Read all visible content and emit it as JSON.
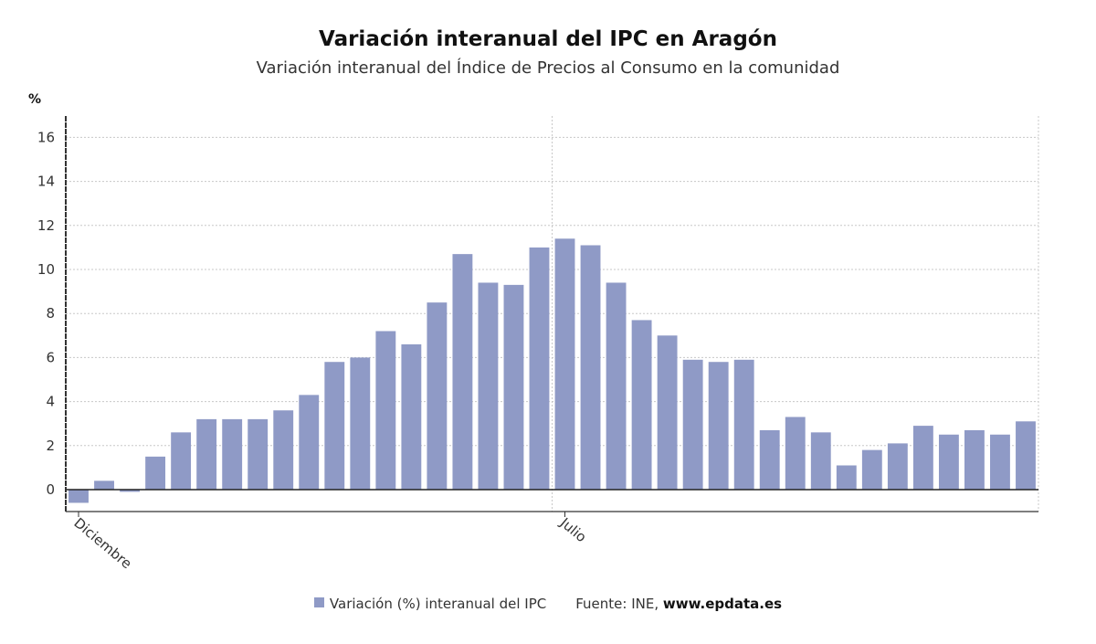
{
  "chart_data": {
    "type": "bar",
    "title": "Variación interanual del IPC en Aragón",
    "subtitle": "Variación interanual del Índice de Precios al Consumo en la comunidad",
    "ylabel": "%",
    "ylim": [
      -1,
      17
    ],
    "yticks": [
      0,
      2,
      4,
      6,
      8,
      10,
      12,
      14,
      16
    ],
    "grid": true,
    "x_tick_labels": [
      {
        "index": 0,
        "label": "Diciembre"
      },
      {
        "index": 19,
        "label": "Julio"
      }
    ],
    "series": [
      {
        "name": "Variación (%) interanual del IPC",
        "color": "#8f9ac6",
        "values": [
          -0.6,
          0.4,
          -0.1,
          1.5,
          2.6,
          3.2,
          3.2,
          3.2,
          3.6,
          4.3,
          5.8,
          6.0,
          7.2,
          6.6,
          8.5,
          10.7,
          9.4,
          9.3,
          11.0,
          11.4,
          11.1,
          9.4,
          7.7,
          7.0,
          5.9,
          5.8,
          5.9,
          2.7,
          3.3,
          2.6,
          1.1,
          1.8,
          2.1,
          2.9,
          2.5,
          2.7,
          2.5,
          3.1
        ]
      }
    ]
  },
  "legend": {
    "series_label": "Variación (%) interanual del IPC",
    "source_label": "Fuente: INE,",
    "source_site": "www.epdata.es"
  }
}
